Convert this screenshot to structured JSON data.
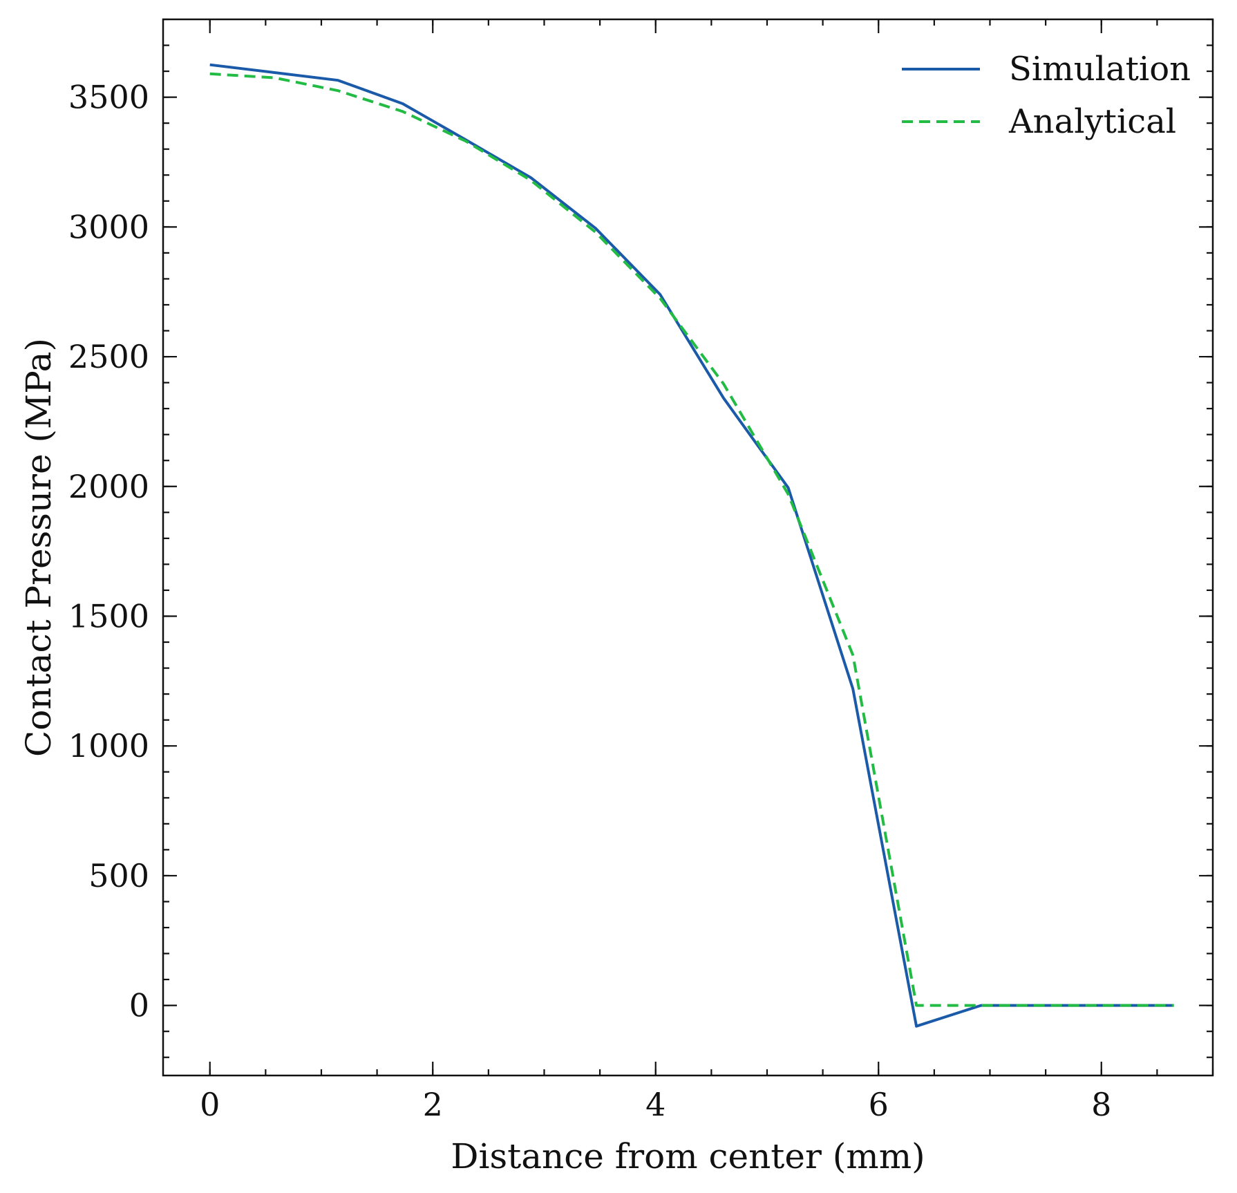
{
  "chart_data": {
    "type": "line",
    "xlabel": "Distance from center (mm)",
    "ylabel": "Contact Pressure (MPa)",
    "xlim": [
      -0.42,
      9.0
    ],
    "ylim": [
      -270,
      3800
    ],
    "x_ticks": [
      0,
      2,
      4,
      6,
      8
    ],
    "y_ticks": [
      0,
      500,
      1000,
      1500,
      2000,
      2500,
      3000,
      3500
    ],
    "x_tick_labels": [
      "0",
      "2",
      "4",
      "6",
      "8"
    ],
    "y_tick_labels": [
      "0",
      "500",
      "1000",
      "1500",
      "2000",
      "2500",
      "3000",
      "3500"
    ],
    "x_minor_step": 0.5,
    "y_minor_step": 100,
    "grid": false,
    "legend_position": "top-right",
    "series": [
      {
        "name": "Simulation",
        "color": "#1a5aa8",
        "style": "solid",
        "x": [
          0,
          0.58,
          1.15,
          1.73,
          2.3,
          2.88,
          3.46,
          4.04,
          4.61,
          5.19,
          5.77,
          6.34,
          6.92,
          7.5,
          8.07,
          8.65
        ],
        "y": [
          3625,
          3595,
          3565,
          3475,
          3335,
          3190,
          2995,
          2740,
          2340,
          1995,
          1220,
          -80,
          0,
          0,
          0,
          0
        ]
      },
      {
        "name": "Analytical",
        "color": "#22bb44",
        "style": "dashed",
        "x": [
          0,
          0.58,
          1.15,
          1.73,
          2.3,
          2.88,
          3.46,
          4.04,
          4.61,
          5.19,
          5.77,
          6.34,
          6.92,
          7.5,
          8.07,
          8.65
        ],
        "y": [
          3590,
          3575,
          3525,
          3445,
          3330,
          3180,
          2980,
          2725,
          2395,
          1970,
          1350,
          0,
          0,
          0,
          0,
          0
        ]
      }
    ]
  }
}
